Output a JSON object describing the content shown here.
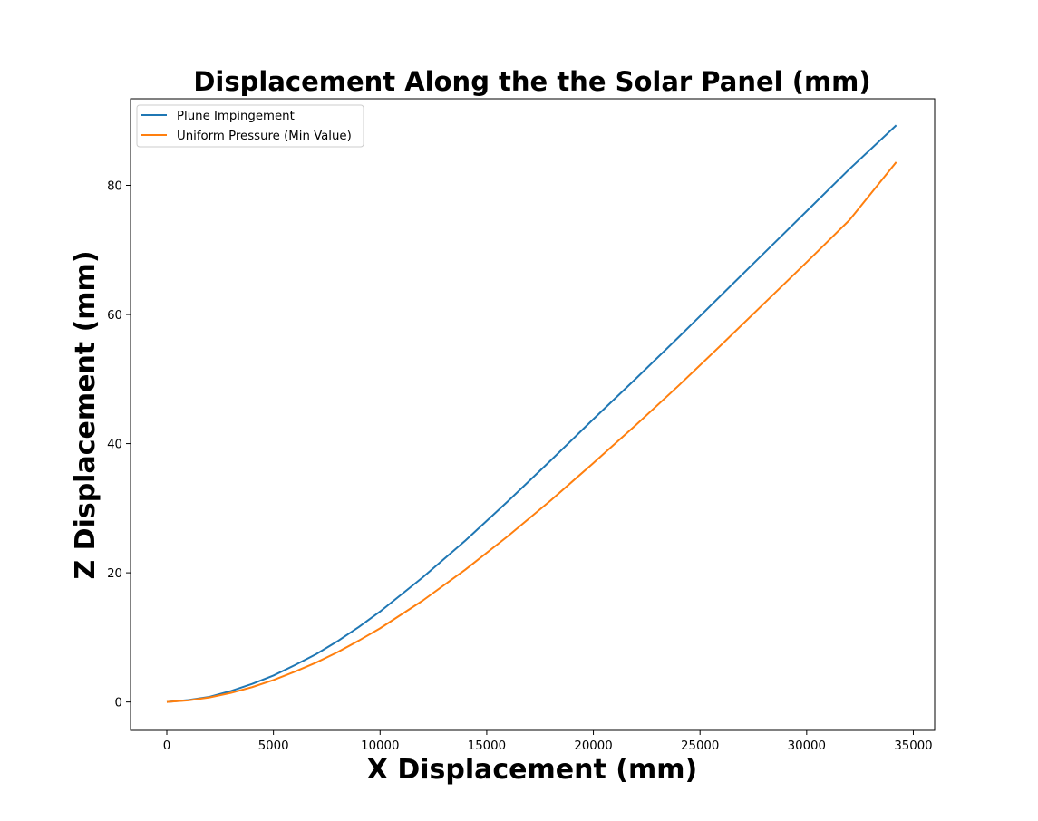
{
  "chart_data": {
    "type": "line",
    "title": "Displacement Along the the Solar Panel (mm)",
    "xlabel": "X Displacement (mm)",
    "ylabel": "Z Displacement (mm)",
    "xlim": [
      -1700,
      36000
    ],
    "ylim": [
      -4.4,
      93.4
    ],
    "xticks": [
      0,
      5000,
      10000,
      15000,
      20000,
      25000,
      30000,
      35000
    ],
    "yticks": [
      0,
      20,
      40,
      60,
      80
    ],
    "grid": false,
    "legend_position": "top-left",
    "series": [
      {
        "name": "Plune Impingement",
        "color": "#1f77b4",
        "x": [
          0,
          1000,
          2000,
          3000,
          4000,
          5000,
          6000,
          7000,
          8000,
          9000,
          10000,
          12000,
          14000,
          16000,
          18000,
          20000,
          22000,
          24000,
          26000,
          28000,
          30000,
          32000,
          34200
        ],
        "y": [
          0,
          0.3,
          0.8,
          1.7,
          2.8,
          4.1,
          5.7,
          7.4,
          9.4,
          11.6,
          14.0,
          19.3,
          25.0,
          31.1,
          37.4,
          43.8,
          50.1,
          56.5,
          63.0,
          69.5,
          76.0,
          82.5,
          89.3
        ]
      },
      {
        "name": "Uniform Pressure (Min Value)",
        "color": "#ff7f0e",
        "x": [
          0,
          1000,
          2000,
          3000,
          4000,
          5000,
          6000,
          7000,
          8000,
          9000,
          10000,
          12000,
          14000,
          16000,
          18000,
          20000,
          22000,
          24000,
          26000,
          28000,
          30000,
          32000,
          34200
        ],
        "y": [
          0,
          0.25,
          0.7,
          1.4,
          2.3,
          3.4,
          4.7,
          6.1,
          7.7,
          9.5,
          11.4,
          15.7,
          20.5,
          25.7,
          31.2,
          37.0,
          42.9,
          49.0,
          55.3,
          61.7,
          68.1,
          74.6,
          83.6
        ]
      }
    ]
  }
}
